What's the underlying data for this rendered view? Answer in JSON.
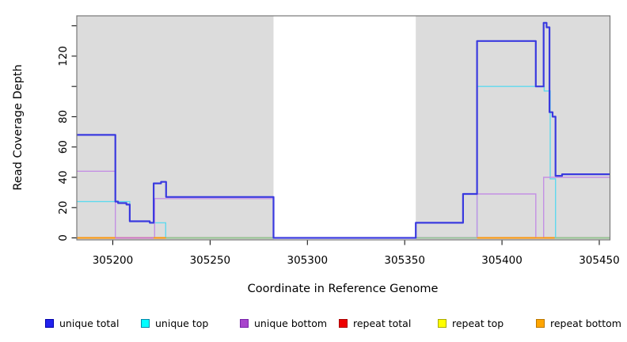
{
  "chart_data": {
    "type": "line",
    "subtype": "step-coverage-plot",
    "title": "",
    "xlabel": "Coordinate in Reference Genome",
    "ylabel": "Read Coverage Depth",
    "panel_background": "#DCDCDC",
    "box_border_color": "#777777",
    "highlight_region": {
      "x0": 305282.6,
      "x1": 305355.7,
      "color": "#FFFFFF",
      "note": "white unmasked band spanning full plot height"
    },
    "x_range": [
      305181.5,
      305455.5
    ],
    "y_range": [
      -1.3,
      146.6
    ],
    "x_ticks": {
      "values": [
        305200,
        305250,
        305300,
        305350,
        305400,
        305450
      ],
      "labels": [
        "305200",
        "305250",
        "305300",
        "305350",
        "305400",
        "305450"
      ]
    },
    "y_ticks": {
      "values": [
        0,
        20,
        40,
        60,
        80,
        100,
        120,
        140
      ],
      "labels": [
        "0",
        "20",
        "40",
        "60",
        "80",
        "",
        "120",
        ""
      ]
    },
    "grid": false,
    "legend_position": "bottom",
    "series": [
      {
        "name": "unique total",
        "color": "#3A3ADF",
        "width": 2.2,
        "steps": [
          [
            305181.5,
            68
          ],
          [
            305201.3,
            24
          ],
          [
            305202.7,
            23
          ],
          [
            305207,
            22
          ],
          [
            305208.7,
            11
          ],
          [
            305219,
            10
          ],
          [
            305221,
            36
          ],
          [
            305224.8,
            37
          ],
          [
            305227.4,
            27
          ],
          [
            305282.6,
            0
          ],
          [
            305355.7,
            10
          ],
          [
            305380,
            29
          ],
          [
            305387.2,
            130
          ],
          [
            305417.4,
            100
          ],
          [
            305421.4,
            142
          ],
          [
            305422.9,
            139
          ],
          [
            305424.4,
            83
          ],
          [
            305426,
            80
          ],
          [
            305427.5,
            41
          ],
          [
            305430.9,
            42
          ],
          [
            305455.5,
            42
          ]
        ]
      },
      {
        "name": "unique top",
        "color": "#5FD9EE",
        "width": 1.4,
        "steps": [
          [
            305181.5,
            24
          ],
          [
            305201.3,
            24
          ],
          [
            305208.7,
            11
          ],
          [
            305219,
            10
          ],
          [
            305227.2,
            0
          ],
          [
            305282.6,
            null
          ],
          [
            305355.7,
            0
          ],
          [
            305387.2,
            100
          ],
          [
            305421.7,
            97
          ],
          [
            305424.8,
            39
          ],
          [
            305427.5,
            0
          ],
          [
            305455.5,
            0
          ]
        ]
      },
      {
        "name": "unique bottom",
        "color": "#C490E4",
        "width": 1.4,
        "steps": [
          [
            305181.5,
            44
          ],
          [
            305201.3,
            0
          ],
          [
            305221.5,
            26
          ],
          [
            305282.6,
            null
          ],
          [
            305355.7,
            0
          ],
          [
            305387.2,
            29
          ],
          [
            305417.4,
            0
          ],
          [
            305421.4,
            40
          ],
          [
            305455.5,
            40
          ]
        ]
      },
      {
        "name": "repeat total",
        "color": "#DD0000",
        "width": 1.4,
        "steps": [
          [
            305181.5,
            0
          ],
          [
            305282.6,
            null
          ],
          [
            305355.7,
            0
          ],
          [
            305455.5,
            0
          ]
        ]
      },
      {
        "name": "repeat top",
        "color": "#EEEE00",
        "width": 1.4,
        "steps": [
          [
            305181.5,
            0
          ],
          [
            305282.6,
            null
          ],
          [
            305355.7,
            0
          ],
          [
            305455.5,
            0
          ]
        ]
      },
      {
        "name": "repeat bottom",
        "color": "#FF9900",
        "width": 1.4,
        "steps": [
          [
            305181.5,
            0
          ],
          [
            305201.3,
            null
          ],
          [
            305221,
            0
          ],
          [
            305227.4,
            null
          ],
          [
            305387.2,
            0
          ],
          [
            305427,
            null
          ]
        ]
      }
    ],
    "zero_line_segments": [
      {
        "x0": 305181.5,
        "x1": 305201.3,
        "color": "#FF9900"
      },
      {
        "x0": 305201.3,
        "x1": 305221.0,
        "color": "#CC6FD0"
      },
      {
        "x0": 305221.0,
        "x1": 305227.4,
        "color": "#FF9900"
      },
      {
        "x0": 305227.4,
        "x1": 305282.6,
        "color": "#8FCB90"
      },
      {
        "x0": 305355.7,
        "x1": 305387.2,
        "color": "#8FCB90"
      },
      {
        "x0": 305387.2,
        "x1": 305427.0,
        "color": "#FF9900"
      },
      {
        "x0": 305427.0,
        "x1": 305455.5,
        "color": "#8FCB90"
      }
    ],
    "legend": {
      "items": [
        {
          "label": "unique total",
          "fill": "#2222EE",
          "border": "#0000AA"
        },
        {
          "label": "unique top",
          "fill": "#00FFFF",
          "border": "#0088AA"
        },
        {
          "label": "unique bottom",
          "fill": "#A844CC",
          "border": "#7722AA"
        },
        {
          "label": "repeat total",
          "fill": "#EE0000",
          "border": "#AA0000"
        },
        {
          "label": "repeat top",
          "fill": "#FFFF00",
          "border": "#AAAA00"
        },
        {
          "label": "repeat bottom",
          "fill": "#FFA500",
          "border": "#BB7700"
        }
      ]
    }
  }
}
